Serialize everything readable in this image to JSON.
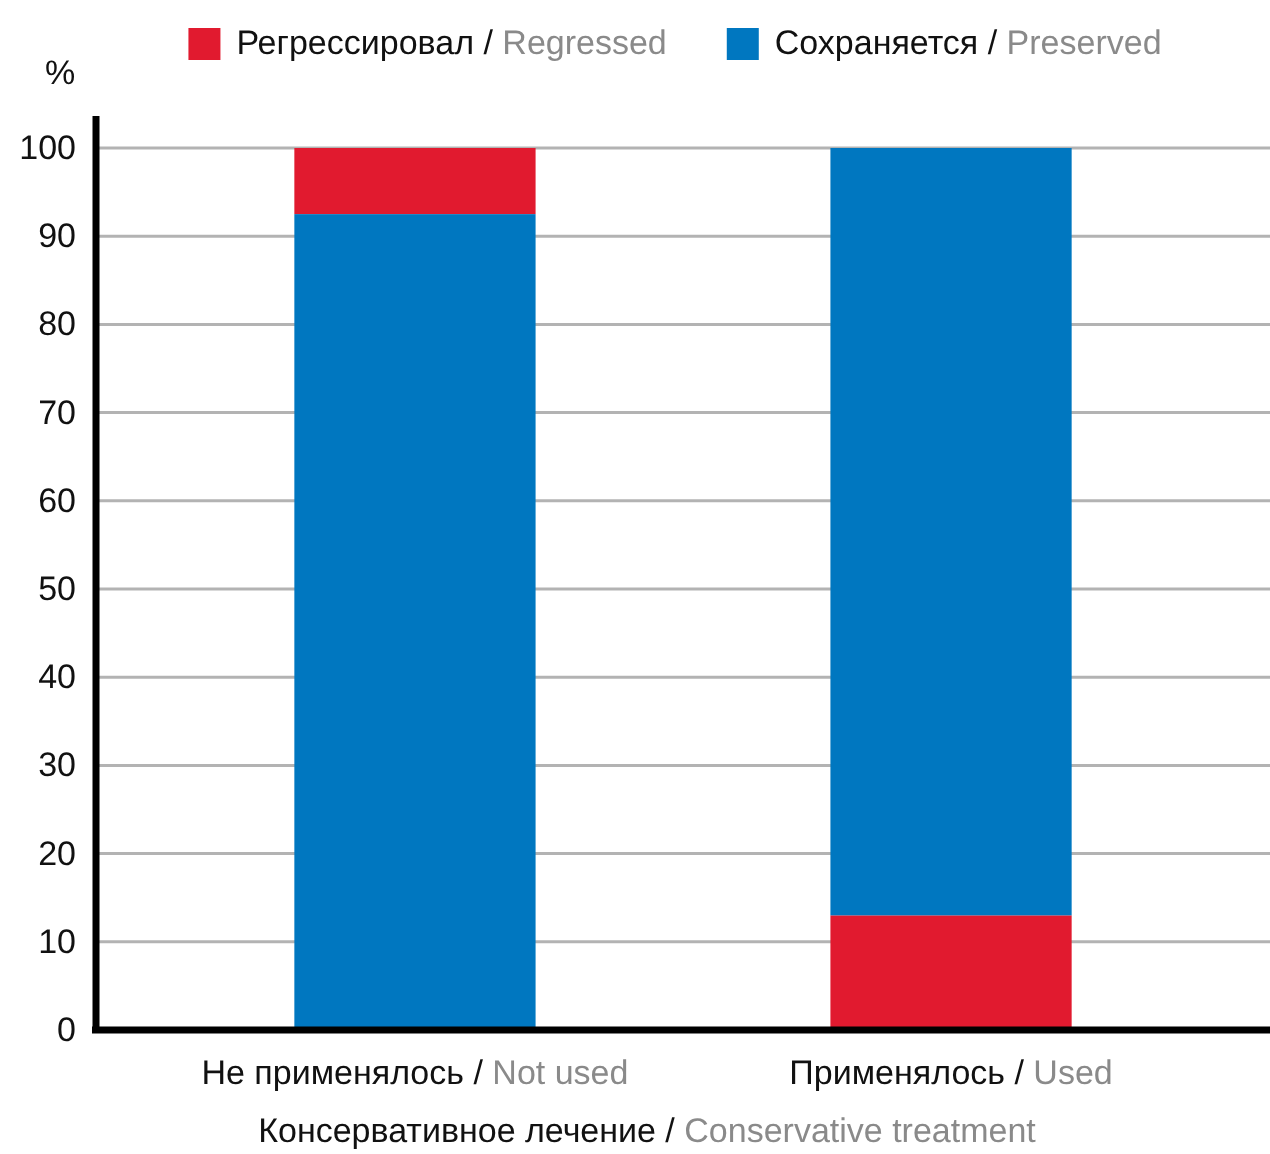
{
  "chart_data": {
    "type": "bar",
    "categories": [
      "Не применялось / Not used",
      "Применялось / Used"
    ],
    "series": [
      {
        "name": "Регрессировал / Regressed",
        "color": "#e11a2f",
        "values": [
          7.5,
          13
        ],
        "base": [
          92.5,
          0
        ]
      },
      {
        "name": "Сохраняется / Preserved",
        "color": "#0077c0",
        "values": [
          92.5,
          87
        ],
        "base": [
          0,
          13
        ]
      }
    ],
    "ylabel": "%",
    "xlabel": "Консервативное лечение / Conservative treatment",
    "ylim": [
      0,
      100
    ],
    "yticks": [
      0,
      10,
      20,
      30,
      40,
      50,
      60,
      70,
      80,
      90,
      100
    ],
    "grid": "y",
    "legend": "top"
  }
}
